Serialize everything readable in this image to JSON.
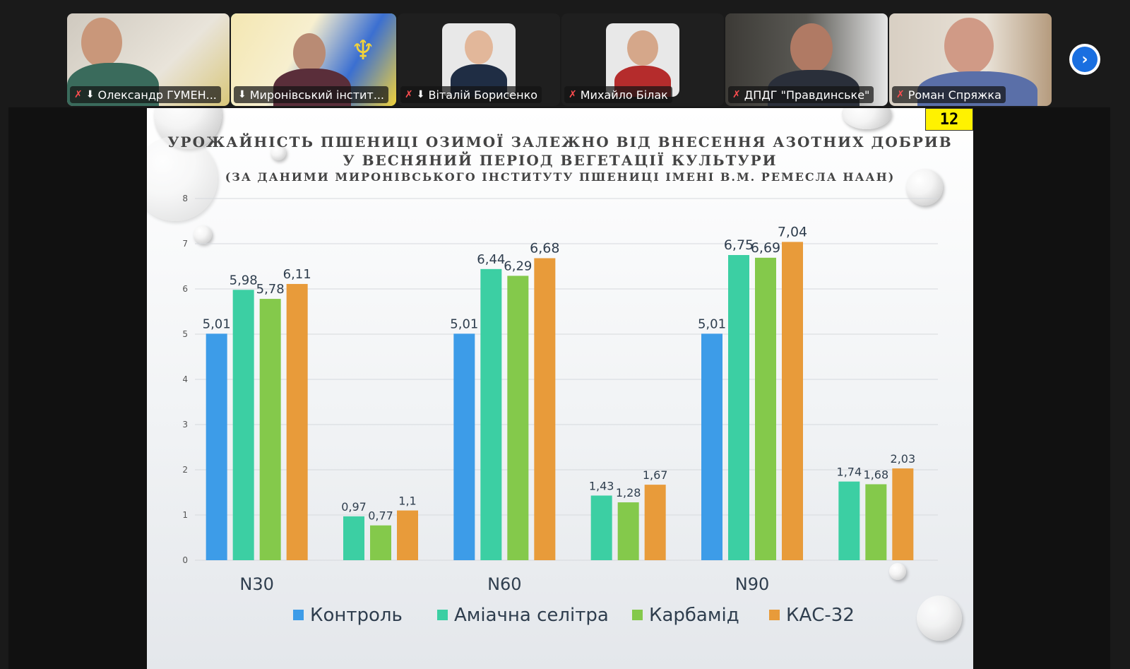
{
  "participants": [
    {
      "name": "Олександр ГУМЕН...",
      "mic_muted": true,
      "pinned": true,
      "active": false
    },
    {
      "name": "Миронівський інстит...",
      "mic_muted": false,
      "pinned": true,
      "active": true
    },
    {
      "name": "Віталій Борисенко",
      "mic_muted": true,
      "pinned": true,
      "active": false
    },
    {
      "name": "Михайло Білак",
      "mic_muted": true,
      "pinned": false,
      "active": false
    },
    {
      "name": "ДПДГ \"Правдинське\"",
      "mic_muted": true,
      "pinned": false,
      "active": false
    },
    {
      "name": "Роман Спряжка",
      "mic_muted": true,
      "pinned": false,
      "active": false
    }
  ],
  "slide": {
    "title_line1": "УРОЖАЙНІСТЬ ПШЕНИЦІ ОЗИМОЇ ЗАЛЕЖНО ВІД ВНЕСЕННЯ АЗОТНИХ ДОБРИВ",
    "title_line2": "У ВЕСНЯНИЙ ПЕРІОД ВЕГЕТАЦІЇ КУЛЬТУРИ",
    "subtitle": "(ЗА ДАНИМИ МИРОНІВСЬКОГО ІНСТИТУТУ ПШЕНИЦІ ІМЕНІ В.М. РЕМЕСЛА НААН)",
    "page_number": "12"
  },
  "chart_data": {
    "type": "bar",
    "ylim": [
      0,
      8
    ],
    "yticks": [
      "0",
      "1",
      "2",
      "3",
      "4",
      "5",
      "6",
      "7",
      "8"
    ],
    "grid": true,
    "legend_position": "bottom",
    "categories": [
      "N30",
      "",
      "N60",
      "",
      "N90",
      ""
    ],
    "series": [
      {
        "name": "Контроль",
        "color": "#3d9ce8",
        "values": [
          5.01,
          null,
          5.01,
          null,
          5.01,
          null
        ],
        "labels": [
          "5,01",
          "",
          "5,01",
          "",
          "5,01",
          ""
        ]
      },
      {
        "name": "Аміачна селітра",
        "color": "#3ccfa3",
        "values": [
          5.98,
          0.97,
          6.44,
          1.43,
          6.75,
          1.74
        ],
        "labels": [
          "5,98",
          "0,97",
          "6,44",
          "1,43",
          "6,75",
          "1,74"
        ]
      },
      {
        "name": "Карбамід",
        "color": "#84c94b",
        "values": [
          5.78,
          0.77,
          6.29,
          1.28,
          6.69,
          1.68
        ],
        "labels": [
          "5,78",
          "0,77",
          "6,29",
          "1,28",
          "6,69",
          "1,68"
        ]
      },
      {
        "name": "КАС-32",
        "color": "#e89b3a",
        "values": [
          6.11,
          1.1,
          6.68,
          1.67,
          7.04,
          2.03
        ],
        "labels": [
          "6,11",
          "1,1",
          "6,68",
          "1,67",
          "7,04",
          "2,03"
        ]
      }
    ]
  }
}
